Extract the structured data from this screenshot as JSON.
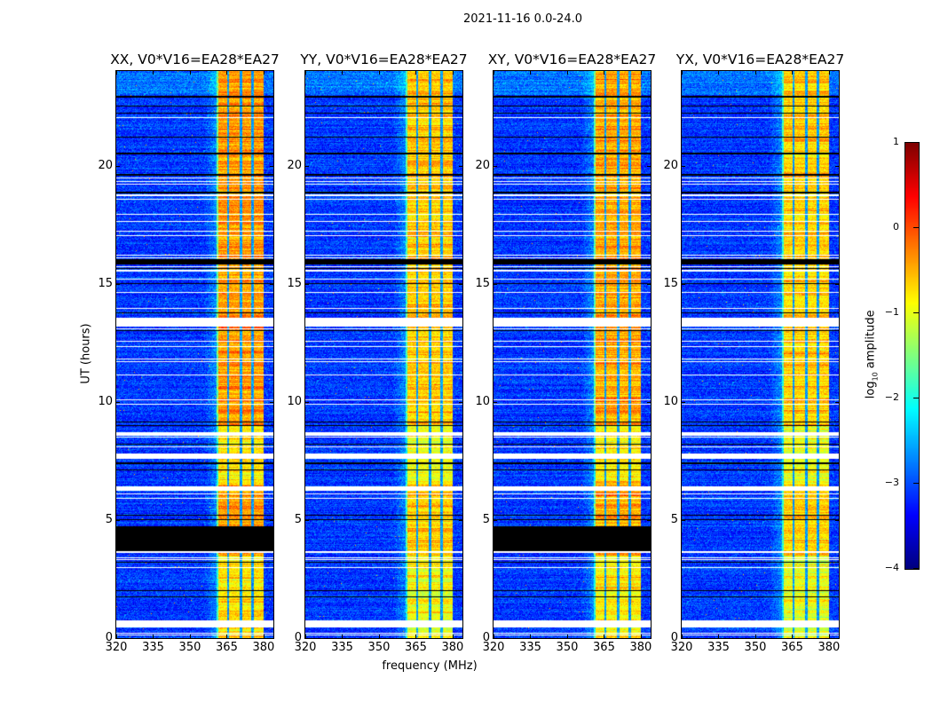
{
  "chart_data": {
    "type": "heatmap",
    "title": "2021-11-16 0.0-24.0",
    "xlabel": "frequency (MHz)",
    "ylabel": "UT (hours)",
    "xlim": [
      320,
      384
    ],
    "ylim": [
      0,
      24
    ],
    "xticks": [
      320,
      335,
      350,
      365,
      380
    ],
    "yticks": [
      0,
      5,
      10,
      15,
      20
    ],
    "panels": [
      {
        "title": "XX, V0*V16=EA28*EA27",
        "band_level": -0.45,
        "black_block": [
          3.65,
          4.73
        ]
      },
      {
        "title": "YY, V0*V16=EA28*EA27",
        "band_level": -0.65,
        "black_block": null
      },
      {
        "title": "XY, V0*V16=EA28*EA27",
        "band_level": -0.5,
        "black_block": [
          3.65,
          4.73
        ]
      },
      {
        "title": "YX, V0*V16=EA28*EA27",
        "band_level": -0.7,
        "black_block": null
      }
    ],
    "background_level": -3.1,
    "bright_band_mhz": [
      360.5,
      380.0
    ],
    "band_dark_channels_mhz": [
      365.5,
      370.6,
      375.3
    ],
    "flagged_white_hours": [
      [
        22.0,
        22.06
      ],
      [
        19.45,
        19.5
      ],
      [
        19.32,
        19.36
      ],
      [
        19.2,
        19.24
      ],
      [
        18.55,
        18.6
      ],
      [
        18.7,
        18.78
      ],
      [
        17.9,
        17.94
      ],
      [
        17.6,
        17.64
      ],
      [
        17.2,
        17.24
      ],
      [
        17.0,
        17.04
      ],
      [
        16.2,
        16.24
      ],
      [
        16.08,
        16.12
      ],
      [
        15.7,
        15.74
      ],
      [
        15.53,
        15.57
      ],
      [
        15.18,
        15.22
      ],
      [
        14.6,
        14.64
      ],
      [
        13.95,
        13.99
      ],
      [
        13.2,
        13.55
      ],
      [
        13.08,
        13.12
      ],
      [
        12.55,
        12.59
      ],
      [
        12.33,
        12.37
      ],
      [
        11.8,
        11.84
      ],
      [
        11.68,
        11.72
      ],
      [
        11.1,
        11.14
      ],
      [
        10.05,
        10.09
      ],
      [
        9.88,
        9.92
      ],
      [
        8.55,
        8.72
      ],
      [
        8.48,
        8.52
      ],
      [
        8.08,
        8.12
      ],
      [
        7.6,
        7.82
      ],
      [
        6.25,
        6.42
      ],
      [
        6.08,
        6.12
      ],
      [
        5.88,
        5.92
      ],
      [
        3.62,
        3.67
      ],
      [
        3.38,
        3.42
      ],
      [
        3.32,
        3.35
      ],
      [
        2.95,
        2.99
      ],
      [
        0.45,
        0.75
      ],
      [
        0.2,
        0.24
      ],
      [
        0.13,
        0.16
      ]
    ],
    "flagged_black_hours": [
      [
        22.88,
        22.94
      ],
      [
        22.48,
        22.53
      ],
      [
        22.18,
        22.23
      ],
      [
        21.18,
        21.23
      ],
      [
        20.48,
        20.53
      ],
      [
        19.58,
        19.63
      ],
      [
        18.83,
        18.88
      ],
      [
        15.8,
        16.02
      ],
      [
        15.62,
        15.67
      ],
      [
        14.98,
        15.02
      ],
      [
        13.73,
        13.78
      ],
      [
        12.98,
        13.02
      ],
      [
        9.14,
        9.18
      ],
      [
        8.98,
        9.02
      ],
      [
        8.18,
        8.22
      ],
      [
        7.38,
        7.42
      ],
      [
        7.08,
        7.12
      ],
      [
        5.18,
        5.22
      ],
      [
        5.01,
        5.05
      ],
      [
        3.18,
        3.22
      ],
      [
        1.98,
        2.02
      ],
      [
        1.71,
        1.75
      ]
    ],
    "colorbar": {
      "label_main": "log",
      "label_sub": "10",
      "label_rest": " amplitude",
      "range": [
        -4,
        1
      ],
      "ticks": [
        "1",
        "0",
        "−1",
        "−2",
        "−3",
        "−4"
      ],
      "tick_values": [
        1,
        0,
        -1,
        -2,
        -3,
        -4
      ],
      "colormap": "jet"
    }
  }
}
